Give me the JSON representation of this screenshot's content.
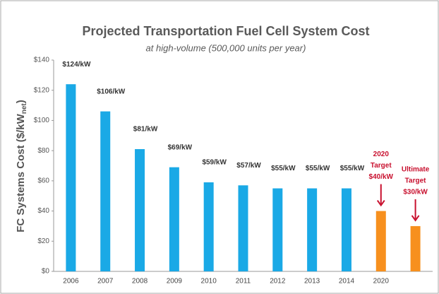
{
  "chart_data": {
    "type": "bar",
    "title": "Projected Transportation Fuel Cell System Cost",
    "subtitle": "at high-volume (500,000 units per year)",
    "ylabel": {
      "main": "FC Systems Cost ($/kW",
      "sub": "net",
      "end": ")"
    },
    "categories": [
      "2006",
      "2007",
      "2008",
      "2009",
      "2010",
      "2011",
      "2012",
      "2013",
      "2014",
      "2020",
      null
    ],
    "values": [
      124,
      106,
      81,
      69,
      59,
      57,
      55,
      55,
      55,
      40,
      30
    ],
    "value_labels": [
      "$124/kW",
      "$106/kW",
      "$81/kW",
      "$69/kW",
      "$59/kW",
      "$57/kW",
      "$55/kW",
      "$55/kW",
      "$55/kW",
      "$40/kW",
      "$30/kW"
    ],
    "colors": [
      "#1aa9e6",
      "#1aa9e6",
      "#1aa9e6",
      "#1aa9e6",
      "#1aa9e6",
      "#1aa9e6",
      "#1aa9e6",
      "#1aa9e6",
      "#1aa9e6",
      "#f7901e",
      "#f7901e"
    ],
    "annotations": [
      null,
      null,
      null,
      null,
      null,
      null,
      null,
      null,
      null,
      [
        "2020",
        "Target"
      ],
      [
        "Ultimate",
        "Target"
      ]
    ],
    "annotation_color": "#c8102e",
    "ylim": [
      0,
      140
    ],
    "yticks": [
      {
        "value": 0,
        "label": "$0"
      },
      {
        "value": 20,
        "label": "$20"
      },
      {
        "value": 40,
        "label": "$40"
      },
      {
        "value": 60,
        "label": "$60"
      },
      {
        "value": 80,
        "label": "$80"
      },
      {
        "value": 100,
        "label": "$100"
      },
      {
        "value": 120,
        "label": "$120"
      },
      {
        "value": 140,
        "label": "$140"
      }
    ]
  }
}
